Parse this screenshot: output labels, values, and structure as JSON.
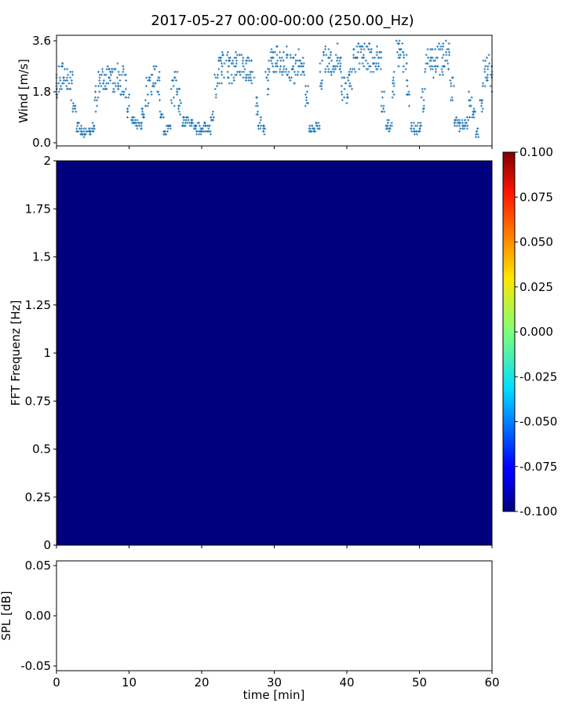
{
  "title": "2017-05-27 00:00-00:00 (250.00_Hz)",
  "colors": {
    "wind": "#1f77b4",
    "spectrogram_fill": "#00007f"
  },
  "chart_data": [
    {
      "type": "scatter",
      "ylabel": "Wind [m/s]",
      "xlim": [
        0,
        60
      ],
      "ylim": [
        0,
        3.6
      ],
      "yticks": [
        "0.0",
        "1.8",
        "3.6"
      ],
      "marker": "plus",
      "x_step_min": 0.5,
      "values": [
        2.0,
        2.2,
        2.4,
        2.3,
        2.0,
        1.2,
        0.6,
        0.45,
        0.35,
        0.3,
        0.5,
        1.6,
        2.3,
        2.4,
        2.2,
        2.4,
        2.2,
        2.3,
        2.2,
        2.0,
        1.3,
        0.8,
        0.7,
        0.6,
        1.0,
        1.8,
        2.2,
        2.3,
        2.0,
        1.0,
        0.4,
        0.5,
        1.8,
        2.2,
        1.5,
        0.75,
        0.75,
        0.75,
        0.6,
        0.5,
        0.5,
        0.5,
        0.5,
        0.9,
        2.0,
        2.6,
        2.7,
        2.8,
        2.6,
        2.7,
        2.8,
        2.7,
        2.6,
        2.7,
        2.5,
        1.3,
        0.7,
        0.5,
        2.2,
        2.8,
        2.9,
        3.0,
        2.8,
        2.9,
        2.7,
        2.8,
        2.6,
        2.9,
        2.8,
        1.5,
        0.55,
        0.5,
        0.6,
        2.4,
        3.0,
        3.0,
        2.9,
        3.0,
        2.6,
        2.0,
        1.8,
        2.4,
        3.0,
        3.1,
        3.0,
        3.1,
        3.0,
        2.9,
        3.0,
        2.8,
        1.6,
        0.6,
        0.6,
        2.0,
        3.2,
        3.3,
        3.0,
        1.8,
        0.6,
        0.5,
        0.55,
        1.5,
        2.8,
        3.0,
        2.8,
        3.0,
        2.9,
        3.1,
        3.0,
        2.0,
        0.7,
        0.6,
        0.6,
        0.7,
        1.4,
        1.0,
        0.3,
        1.5,
        2.5,
        2.6,
        2.2
      ]
    },
    {
      "type": "heatmap",
      "ylabel": "FFT Frequenz [Hz]",
      "xlim": [
        0,
        60
      ],
      "ylim": [
        0,
        2
      ],
      "yticks": [
        "0",
        "0.25",
        "0.5",
        "0.75",
        "1",
        "1.25",
        "1.5",
        "1.75",
        "2"
      ],
      "colormap": "jet",
      "value": -0.1,
      "colorbar": {
        "range": [
          -0.1,
          0.1
        ],
        "ticks": [
          "-0.100",
          "-0.075",
          "-0.050",
          "-0.025",
          "0.000",
          "0.025",
          "0.050",
          "0.075",
          "0.100"
        ]
      }
    },
    {
      "type": "line",
      "ylabel": "SPL [dB]",
      "xlabel": "time [min]",
      "xlim": [
        0,
        60
      ],
      "ylim": [
        -0.055,
        0.055
      ],
      "yticks": [
        "-0.05",
        "0.00",
        "0.05"
      ],
      "xticks": [
        "0",
        "10",
        "20",
        "30",
        "40",
        "50",
        "60"
      ],
      "values": []
    }
  ]
}
